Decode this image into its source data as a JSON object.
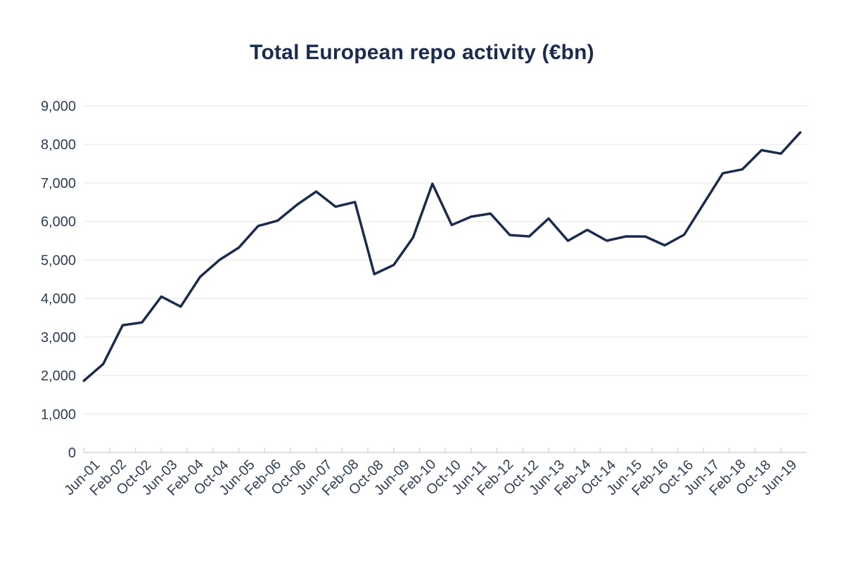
{
  "chart_data": {
    "type": "line",
    "title": "Total European repo activity (€bn)",
    "x": [
      "Jun-01",
      "Dec-01",
      "Jun-02",
      "Dec-02",
      "Jun-03",
      "Dec-03",
      "Jun-04",
      "Dec-04",
      "Jun-05",
      "Dec-05",
      "Jun-06",
      "Dec-06",
      "Jun-07",
      "Dec-07",
      "Jun-08",
      "Dec-08",
      "Jun-09",
      "Dec-09",
      "Jun-10",
      "Dec-10",
      "Jun-11",
      "Dec-11",
      "Jun-12",
      "Dec-12",
      "Jun-13",
      "Dec-13",
      "Jun-14",
      "Dec-14",
      "Jun-15",
      "Dec-15",
      "Jun-16",
      "Dec-16",
      "Jun-17",
      "Dec-17",
      "Jun-18",
      "Dec-18",
      "Jun-19",
      "Dec-19"
    ],
    "values": [
      1863,
      2298,
      3305,
      3377,
      4050,
      3788,
      4561,
      5000,
      5319,
      5883,
      6019,
      6430,
      6775,
      6382,
      6504,
      4633,
      4868,
      5582,
      6979,
      5908,
      6124,
      6204,
      5647,
      5611,
      6076,
      5499,
      5782,
      5500,
      5612,
      5608,
      5379,
      5656,
      6455,
      7250,
      7351,
      7851,
      7761,
      8310
    ],
    "xlabel": "",
    "ylabel": "",
    "ylim": [
      0,
      9000
    ],
    "y_tick_step": 1000,
    "y_tick_labels": [
      "0",
      "1,000",
      "2,000",
      "3,000",
      "4,000",
      "5,000",
      "6,000",
      "7,000",
      "8,000",
      "9,000"
    ],
    "x_tick_labels": [
      "Jun-01",
      "Feb-02",
      "Oct-02",
      "Jun-03",
      "Feb-04",
      "Oct-04",
      "Jun-05",
      "Feb-06",
      "Oct-06",
      "Jun-07",
      "Feb-08",
      "Oct-08",
      "Jun-09",
      "Feb-10",
      "Oct-10",
      "Jun-11",
      "Feb-12",
      "Oct-12",
      "Jun-13",
      "Feb-14",
      "Oct-14",
      "Jun-15",
      "Feb-16",
      "Oct-16",
      "Jun-17",
      "Feb-18",
      "Oct-18",
      "Jun-19"
    ],
    "x_tick_interval_months": 8,
    "data_interval_months": 6,
    "grid": "horizontal-only",
    "legend_position": "none",
    "colors": {
      "line": "#1b2b4d",
      "title_text": "#1b2b4d",
      "tick_text": "#2e3d52",
      "gridline": "#ececec",
      "axis_line": "#d6d6d6",
      "background": "#ffffff"
    }
  }
}
